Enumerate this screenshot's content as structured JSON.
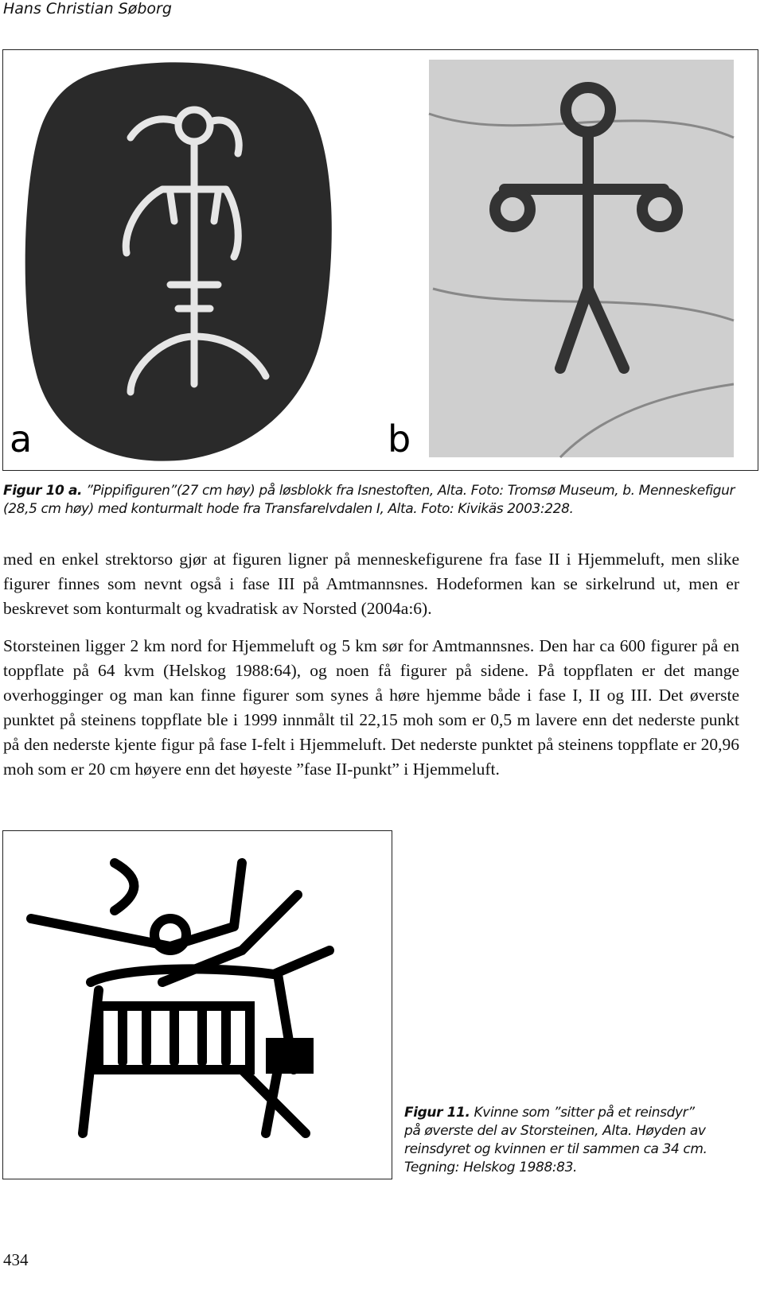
{
  "header": {
    "author": "Hans Christian Søborg"
  },
  "figure_10": {
    "label_a": "a",
    "label_b": "b",
    "caption_label": "Figur 10 a.",
    "caption_text": " ”Pippifiguren”(27 cm høy) på løsblokk fra Isnestoften, Alta. Foto: Tromsø Museum, b. Menneskefigur (28,5 cm høy) med konturmalt hode fra Transfarelvdalen I, Alta. Foto: Kivikäs 2003:228."
  },
  "body": {
    "paragraphs": [
      "med en enkel strektorso gjør at figuren ligner på menneskefigurene fra fase II i Hjemmeluft, men slike figurer finnes som nevnt også i fase III på Amtmannsnes. Hodeformen kan se sirkelrund ut, men er beskrevet som konturmalt og kvadratisk av Norsted (2004a:6).",
      "Storsteinen ligger 2 km nord for Hjemmeluft og 5 km sør for Amtmannsnes. Den har ca 600 figurer på en toppflate på 64 kvm (Helskog 1988:64), og noen få figurer på sidene. På toppflaten er det mange overhogginger og man kan finne figurer som synes å høre hjemme både i fase I, II og III. Det øverste punktet på steinens toppflate ble i 1999 innmålt til 22,15 moh som er 0,5 m lavere enn det nederste punkt på den nederste kjente figur på fase I-felt i Hjemmeluft. Det nederste punktet på steinens toppflate er 20,96 moh som er 20 cm høyere enn det høyeste ”fase II-punkt” i Hjemmeluft."
    ]
  },
  "figure_11": {
    "caption_label": "Figur 11.",
    "caption_text": " Kvinne som ”sitter på et reinsdyr” på øverste del av Storsteinen, Alta. Høyden av reinsdyret og kvinnen er til sammen ca 34 cm. Tegning: Helskog 1988:83."
  },
  "footer": {
    "page_number": "434"
  }
}
